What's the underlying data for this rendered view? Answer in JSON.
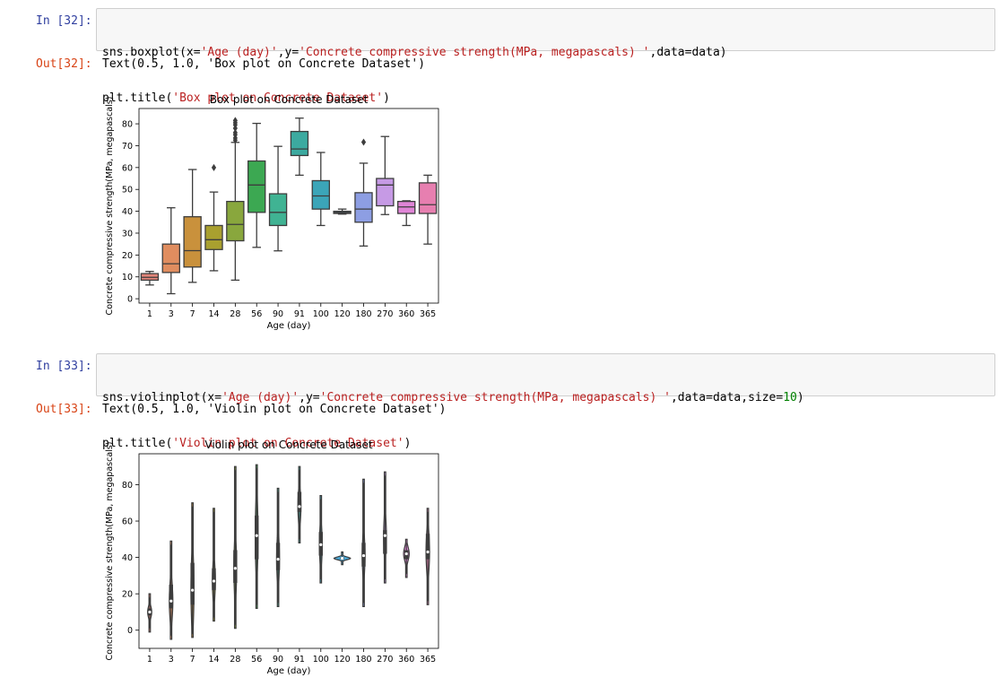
{
  "cells": [
    {
      "in_prompt": "In [32]:",
      "code_line1": [
        {
          "t": "t",
          "v": "sns.boxplot(x="
        },
        {
          "t": "s",
          "v": "'Age (day)'"
        },
        {
          "t": "t",
          "v": ",y="
        },
        {
          "t": "s",
          "v": "'Concrete compressive strength(MPa, megapascals) '"
        },
        {
          "t": "t",
          "v": ",data=data)"
        }
      ],
      "code_line2": [
        {
          "t": "t",
          "v": "plt.title("
        },
        {
          "t": "s",
          "v": "'Box plot on Concrete Dataset'"
        },
        {
          "t": "t",
          "v": ")"
        }
      ],
      "out_prompt": "Out[32]:",
      "out_text": "Text(0.5, 1.0, 'Box plot on Concrete Dataset')"
    },
    {
      "in_prompt": "In [33]:",
      "code_line1": [
        {
          "t": "t",
          "v": "sns.violinplot(x="
        },
        {
          "t": "s",
          "v": "'Age (day)'"
        },
        {
          "t": "t",
          "v": ",y="
        },
        {
          "t": "s",
          "v": "'Concrete compressive strength(MPa, megapascals) '"
        },
        {
          "t": "t",
          "v": ",data=data,size="
        },
        {
          "t": "n",
          "v": "10"
        },
        {
          "t": "t",
          "v": ")"
        }
      ],
      "code_line2": [
        {
          "t": "t",
          "v": "plt.title("
        },
        {
          "t": "s",
          "v": "'Violin plot on Concrete Dataset'"
        },
        {
          "t": "t",
          "v": ")"
        }
      ],
      "out_prompt": "Out[33]:",
      "out_text": "Text(0.5, 1.0, 'Violin plot on Concrete Dataset')"
    }
  ],
  "chart_data": [
    {
      "type": "box",
      "title": "Box plot on Concrete Dataset",
      "xlabel": "Age (day)",
      "ylabel": "Concrete compressive strength(MPa, megapascals)",
      "ylim": [
        -2,
        87
      ],
      "yticks": [
        0,
        10,
        20,
        30,
        40,
        50,
        60,
        70,
        80
      ],
      "categories": [
        "1",
        "3",
        "7",
        "14",
        "28",
        "56",
        "90",
        "91",
        "100",
        "120",
        "180",
        "270",
        "360",
        "365"
      ],
      "colors": [
        "#e2857a",
        "#e08d5f",
        "#c9913c",
        "#a9a02f",
        "#89a73d",
        "#3ca852",
        "#40b393",
        "#3caaa0",
        "#3ba5b8",
        "#4aa9d8",
        "#8d9ee3",
        "#c69ae5",
        "#df85d6",
        "#e77fb0"
      ],
      "boxes": [
        {
          "whislo": 6.3,
          "q1": 8.5,
          "med": 9.8,
          "q3": 11.5,
          "whishi": 12.5,
          "fliers": []
        },
        {
          "whislo": 2.3,
          "q1": 12.0,
          "med": 16.0,
          "q3": 25.0,
          "whishi": 41.6,
          "fliers": []
        },
        {
          "whislo": 7.5,
          "q1": 14.5,
          "med": 22.0,
          "q3": 37.5,
          "whishi": 59.1,
          "fliers": []
        },
        {
          "whislo": 12.8,
          "q1": 22.5,
          "med": 27.0,
          "q3": 33.5,
          "whishi": 48.8,
          "fliers": [
            60.0
          ]
        },
        {
          "whislo": 8.5,
          "q1": 26.5,
          "med": 34.0,
          "q3": 44.5,
          "whishi": 71.5,
          "fliers": [
            72.5,
            73.5,
            75.0,
            76.0,
            78.0,
            79.5,
            80.5,
            81.5
          ]
        },
        {
          "whislo": 23.5,
          "q1": 39.5,
          "med": 52.0,
          "q3": 63.0,
          "whishi": 80.2,
          "fliers": []
        },
        {
          "whislo": 21.9,
          "q1": 33.5,
          "med": 39.5,
          "q3": 48.0,
          "whishi": 69.7,
          "fliers": []
        },
        {
          "whislo": 56.5,
          "q1": 65.5,
          "med": 68.5,
          "q3": 76.5,
          "whishi": 82.6,
          "fliers": []
        },
        {
          "whislo": 33.5,
          "q1": 41.0,
          "med": 47.0,
          "q3": 54.0,
          "whishi": 66.9,
          "fliers": []
        },
        {
          "whislo": 38.7,
          "q1": 39.0,
          "med": 39.5,
          "q3": 40.0,
          "whishi": 41.0,
          "fliers": []
        },
        {
          "whislo": 24.1,
          "q1": 35.0,
          "med": 41.0,
          "q3": 48.5,
          "whishi": 62.0,
          "fliers": [
            71.6
          ]
        },
        {
          "whislo": 38.5,
          "q1": 42.5,
          "med": 52.0,
          "q3": 55.0,
          "whishi": 74.2,
          "fliers": []
        },
        {
          "whislo": 33.5,
          "q1": 39.0,
          "med": 42.0,
          "q3": 44.5,
          "whishi": 44.8,
          "fliers": []
        },
        {
          "whislo": 25.0,
          "q1": 39.0,
          "med": 43.0,
          "q3": 53.0,
          "whishi": 56.5,
          "fliers": []
        }
      ]
    },
    {
      "type": "violin",
      "title": "Violin plot on Concrete Dataset",
      "xlabel": "Age (day)",
      "ylabel": "Concrete compressive strength(MPa, megapascals)",
      "ylim": [
        -10,
        97
      ],
      "yticks": [
        0,
        20,
        40,
        60,
        80
      ],
      "categories": [
        "1",
        "3",
        "7",
        "14",
        "28",
        "56",
        "90",
        "91",
        "100",
        "120",
        "180",
        "270",
        "360",
        "365"
      ],
      "colors": [
        "#e2857a",
        "#e08d5f",
        "#c9913c",
        "#a9a02f",
        "#89a73d",
        "#3ca852",
        "#40b393",
        "#3caaa0",
        "#3ba5b8",
        "#4aa9d8",
        "#8d9ee3",
        "#c69ae5",
        "#df85d6",
        "#e77fb0"
      ],
      "violins": [
        {
          "min": -1,
          "max": 20,
          "q1": 8,
          "med": 10,
          "q3": 12,
          "width": 0.8
        },
        {
          "min": -5,
          "max": 49,
          "q1": 12,
          "med": 16,
          "q3": 25,
          "width": 0.7
        },
        {
          "min": -4,
          "max": 70,
          "q1": 14,
          "med": 22,
          "q3": 37,
          "width": 0.6
        },
        {
          "min": 5,
          "max": 67,
          "q1": 22,
          "med": 27,
          "q3": 34,
          "width": 0.6
        },
        {
          "min": 1,
          "max": 90,
          "q1": 26,
          "med": 34,
          "q3": 44,
          "width": 0.55
        },
        {
          "min": 12,
          "max": 91,
          "q1": 39,
          "med": 52,
          "q3": 63,
          "width": 0.55
        },
        {
          "min": 13,
          "max": 78,
          "q1": 33,
          "med": 39,
          "q3": 48,
          "width": 0.55
        },
        {
          "min": 48,
          "max": 90,
          "q1": 65,
          "med": 68,
          "q3": 76,
          "width": 0.6
        },
        {
          "min": 26,
          "max": 74,
          "q1": 41,
          "med": 47,
          "q3": 54,
          "width": 0.55
        },
        {
          "min": 36,
          "max": 43,
          "q1": 39,
          "med": 39.5,
          "q3": 40,
          "width": 3.2
        },
        {
          "min": 13,
          "max": 83,
          "q1": 35,
          "med": 41,
          "q3": 48,
          "width": 0.55
        },
        {
          "min": 26,
          "max": 87,
          "q1": 42,
          "med": 52,
          "q3": 55,
          "width": 0.55
        },
        {
          "min": 29,
          "max": 50,
          "q1": 39,
          "med": 42,
          "q3": 44,
          "width": 1.1
        },
        {
          "min": 14,
          "max": 67,
          "q1": 39,
          "med": 43,
          "q3": 53,
          "width": 0.7
        }
      ]
    }
  ]
}
